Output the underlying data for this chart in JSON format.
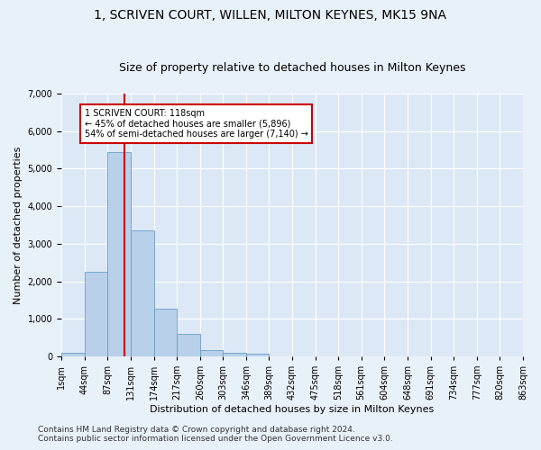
{
  "title_line1": "1, SCRIVEN COURT, WILLEN, MILTON KEYNES, MK15 9NA",
  "title_line2": "Size of property relative to detached houses in Milton Keynes",
  "xlabel": "Distribution of detached houses by size in Milton Keynes",
  "ylabel": "Number of detached properties",
  "bar_color": "#b8d0ea",
  "bar_edge_color": "#6a9ec5",
  "bin_edges": [
    1,
    44,
    87,
    131,
    174,
    217,
    260,
    303,
    346,
    389,
    432,
    475,
    518,
    561,
    604,
    648,
    691,
    734,
    777,
    820,
    863
  ],
  "bar_heights": [
    100,
    2250,
    5450,
    3350,
    1280,
    600,
    175,
    90,
    60,
    0,
    0,
    0,
    0,
    0,
    0,
    0,
    0,
    0,
    0,
    0
  ],
  "property_size": 118,
  "vline_color": "#cc0000",
  "annotation_text": "1 SCRIVEN COURT: 118sqm\n← 45% of detached houses are smaller (5,896)\n54% of semi-detached houses are larger (7,140) →",
  "annotation_box_color": "#ffffff",
  "annotation_box_edge_color": "#cc0000",
  "ylim": [
    0,
    7000
  ],
  "yticks": [
    0,
    1000,
    2000,
    3000,
    4000,
    5000,
    6000,
    7000
  ],
  "footer_line1": "Contains HM Land Registry data © Crown copyright and database right 2024.",
  "footer_line2": "Contains public sector information licensed under the Open Government Licence v3.0.",
  "bg_color": "#e8f0f8",
  "plot_bg_color": "#dce8f5",
  "grid_color": "#ffffff",
  "title_fontsize": 10,
  "subtitle_fontsize": 9,
  "axis_label_fontsize": 8,
  "tick_label_size": 7,
  "footer_fontsize": 6.5
}
